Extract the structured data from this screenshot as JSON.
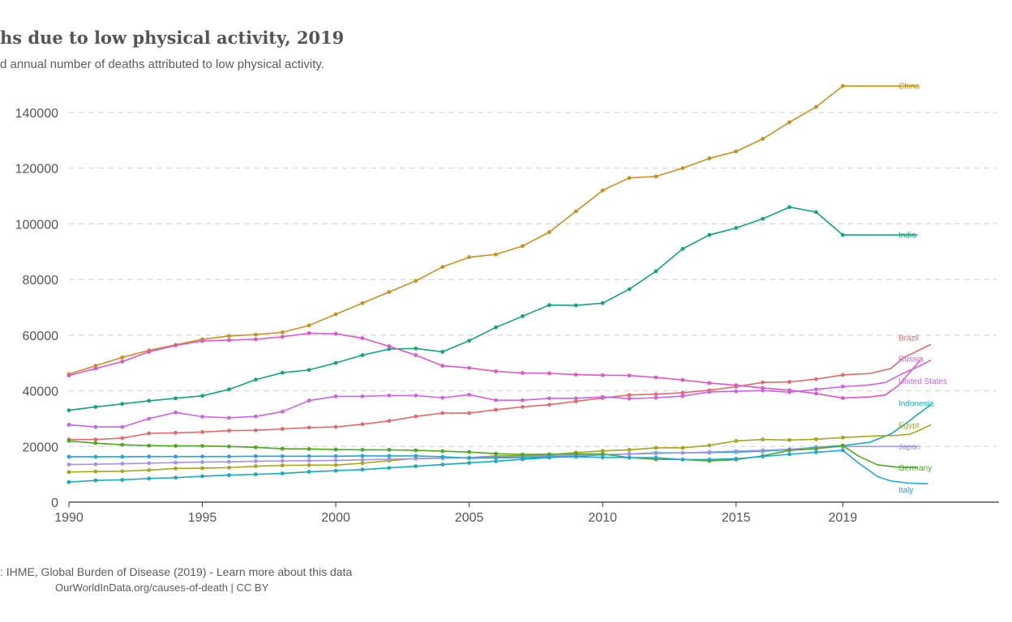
{
  "header": {
    "title": "hs due to low physical activity, 2019",
    "subtitle": "d annual number of deaths attributed to low physical activity."
  },
  "footer": {
    "source": ": IHME, Global Burden of Disease (2019) - Learn more about this data",
    "credit": "OurWorldInData.org/causes-of-death | CC BY"
  },
  "chart_data": {
    "type": "line",
    "title": "hs due to low physical activity, 2019",
    "subtitle": "d annual number of deaths attributed to low physical activity.",
    "xlabel": "",
    "ylabel": "",
    "xlim": [
      1990,
      2025
    ],
    "ylim": [
      0,
      150000
    ],
    "x_ticks": [
      1990,
      1995,
      2000,
      2005,
      2010,
      2015,
      2019
    ],
    "y_ticks": [
      0,
      20000,
      40000,
      60000,
      80000,
      100000,
      120000,
      140000
    ],
    "grid": "horizontal-dashed",
    "legend": "right-inline-labels",
    "x": [
      1990,
      1991,
      1992,
      1993,
      1994,
      1995,
      1996,
      1997,
      1998,
      1999,
      2000,
      2001,
      2002,
      2003,
      2004,
      2005,
      2006,
      2007,
      2008,
      2009,
      2010,
      2011,
      2012,
      2013,
      2014,
      2015,
      2016,
      2017,
      2018,
      2019
    ],
    "series": [
      {
        "name": "China",
        "color": "#c9901f",
        "values": [
          46000,
          49000,
          52000,
          54500,
          56500,
          58500,
          59700,
          60200,
          61000,
          63500,
          67500,
          71500,
          75500,
          79500,
          84500,
          88000,
          89000,
          92000,
          97000,
          104500,
          112000,
          116500,
          117000,
          120000,
          123500,
          126000,
          130500,
          136500,
          142000,
          149500
        ],
        "tail": [
          [
            2019,
            149500
          ],
          [
            2020,
            149500
          ],
          [
            2021,
            149500
          ],
          [
            2021.8,
            149500
          ]
        ]
      },
      {
        "name": "India",
        "color": "#12a47e",
        "values": [
          33000,
          34200,
          35300,
          36400,
          37300,
          38200,
          40500,
          44000,
          46500,
          47500,
          50000,
          52800,
          55000,
          55200,
          54000,
          58000,
          62800,
          66800,
          70800,
          70700,
          71500,
          76500,
          83000,
          91000,
          96000,
          98500,
          101800,
          106000,
          104200,
          96000
        ],
        "tail": [
          [
            2019,
            96000
          ],
          [
            2020,
            96000
          ],
          [
            2021,
            96000
          ],
          [
            2021.8,
            96000
          ]
        ]
      },
      {
        "name": "Brazil",
        "color": "#e4696a",
        "values": [
          22500,
          22500,
          23000,
          24700,
          24900,
          25200,
          25700,
          25800,
          26300,
          26800,
          27000,
          28000,
          29200,
          30800,
          32000,
          32000,
          33200,
          34200,
          35000,
          36200,
          37400,
          38500,
          38800,
          39300,
          40200,
          41500,
          43000,
          43200,
          44200,
          45700
        ],
        "tail": [
          [
            2019,
            45700
          ],
          [
            2020,
            46200
          ],
          [
            2020.8,
            48000
          ],
          [
            2021.3,
            52000
          ],
          [
            2022.3,
            56700
          ]
        ]
      },
      {
        "name": "Russia",
        "color": "#e056c8",
        "values": [
          45500,
          48000,
          50500,
          54000,
          56300,
          57900,
          58200,
          58500,
          59400,
          60700,
          60500,
          58900,
          56000,
          52800,
          49000,
          48200,
          47000,
          46400,
          46300,
          45800,
          45600,
          45500,
          44800,
          43900,
          42800,
          42000,
          41000,
          40200,
          39000,
          37400
        ],
        "tail": [
          [
            2019,
            37400
          ],
          [
            2020,
            37800
          ],
          [
            2020.6,
            38500
          ],
          [
            2021.1,
            42000
          ],
          [
            2021.9,
            51000
          ]
        ]
      },
      {
        "name": "United States",
        "color": "#cc62e8",
        "values": [
          27800,
          27000,
          27000,
          30000,
          32200,
          30700,
          30300,
          30800,
          32500,
          36500,
          38000,
          38000,
          38300,
          38300,
          37500,
          38600,
          36600,
          36600,
          37300,
          37300,
          37800,
          37200,
          37500,
          38100,
          39600,
          39800,
          40100,
          39500,
          40500,
          41500
        ],
        "tail": [
          [
            2019,
            41500
          ],
          [
            2020,
            42100
          ],
          [
            2020.6,
            43000
          ],
          [
            2021.2,
            46000
          ],
          [
            2021.9,
            49000
          ],
          [
            2022.3,
            51000
          ]
        ]
      },
      {
        "name": "Indonesia",
        "color": "#14aac4",
        "values": [
          7200,
          7800,
          8000,
          8500,
          8800,
          9300,
          9700,
          10000,
          10300,
          10900,
          11300,
          11700,
          12300,
          12900,
          13500,
          14100,
          14700,
          15400,
          16000,
          16500,
          17000,
          17300,
          17700,
          17700,
          17800,
          18000,
          18300,
          18900,
          19700,
          20300
        ],
        "tail": [
          [
            2019,
            20300
          ],
          [
            2020,
            21500
          ],
          [
            2020.8,
            24500
          ],
          [
            2021.4,
            28500
          ],
          [
            2021.8,
            31500
          ],
          [
            2022.3,
            35000
          ]
        ]
      },
      {
        "name": "Egypt",
        "color": "#a6a619",
        "values": [
          10800,
          11000,
          11100,
          11500,
          12100,
          12200,
          12400,
          12900,
          13200,
          13300,
          13300,
          14000,
          14900,
          15700,
          15800,
          16000,
          16600,
          16700,
          17000,
          17800,
          18400,
          18800,
          19500,
          19500,
          20400,
          22000,
          22500,
          22300,
          22600,
          23200
        ],
        "tail": [
          [
            2019,
            23200
          ],
          [
            2020,
            23700
          ],
          [
            2021,
            24000
          ],
          [
            2021.5,
            24400
          ],
          [
            2021.8,
            25500
          ],
          [
            2022.3,
            27800
          ]
        ]
      },
      {
        "name": "Japan",
        "color": "#9f93ea",
        "values": [
          13500,
          13600,
          13800,
          14000,
          14200,
          14400,
          14500,
          14700,
          14800,
          14900,
          15000,
          15200,
          15400,
          15600,
          15800,
          16000,
          16200,
          16400,
          16600,
          16800,
          17000,
          17300,
          17500,
          17700,
          18000,
          18300,
          18600,
          19000,
          19500,
          20000
        ],
        "tail": [
          [
            2019,
            20000
          ],
          [
            2020,
            20000
          ],
          [
            2021,
            20000
          ],
          [
            2021.8,
            20000
          ]
        ]
      },
      {
        "name": "Germany",
        "color": "#4ba81f",
        "values": [
          22000,
          21200,
          20600,
          20300,
          20200,
          20200,
          20000,
          19700,
          19200,
          19100,
          18900,
          18800,
          18800,
          18600,
          18300,
          18000,
          17400,
          17100,
          17200,
          17300,
          17300,
          16000,
          15400,
          15300,
          14800,
          15300,
          16600,
          18600,
          19200,
          20300
        ],
        "tail": [
          [
            2019,
            20300
          ],
          [
            2019.6,
            16500
          ],
          [
            2020.3,
            13400
          ],
          [
            2021,
            12600
          ],
          [
            2021.8,
            12400
          ]
        ]
      },
      {
        "name": "Italy",
        "color": "#1ca9d9",
        "values": [
          16300,
          16300,
          16300,
          16400,
          16400,
          16400,
          16400,
          16500,
          16500,
          16500,
          16500,
          16600,
          16600,
          16600,
          16300,
          15800,
          15900,
          16000,
          16200,
          16300,
          16100,
          16000,
          16000,
          15300,
          15300,
          15600,
          16400,
          17200,
          17900,
          18600
        ],
        "tail": [
          [
            2019,
            18600
          ],
          [
            2019.6,
            14000
          ],
          [
            2020.3,
            9200
          ],
          [
            2020.8,
            7600
          ],
          [
            2021.5,
            6800
          ],
          [
            2022.2,
            6600
          ]
        ]
      }
    ],
    "series_labels": [
      {
        "name": "China",
        "y": 149500
      },
      {
        "name": "India",
        "y": 96000
      },
      {
        "name": "Brazil",
        "y": 59000
      },
      {
        "name": "Russia",
        "y": 51500
      },
      {
        "name": "United States",
        "y": 43500
      },
      {
        "name": "Indonesia",
        "y": 35500
      },
      {
        "name": "Egypt",
        "y": 27700
      },
      {
        "name": "Japan",
        "y": 20000
      },
      {
        "name": "Germany",
        "y": 12300
      },
      {
        "name": "Italy",
        "y": 4400
      }
    ]
  }
}
